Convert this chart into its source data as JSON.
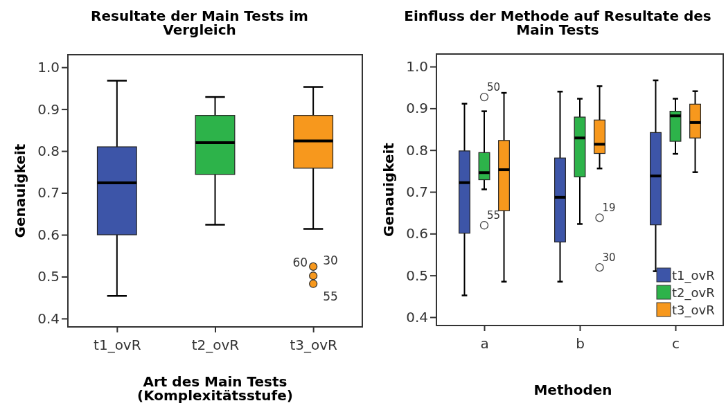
{
  "chart_data": [
    {
      "type": "box",
      "title": "Resultate der Main Tests im\nVergleich",
      "xlabel": "Art des Main Tests\n(Komplexitätsstufe)",
      "ylabel": "Genauigkeit",
      "categories": [
        "t1_ovR",
        "t2_ovR",
        "t3_ovR"
      ],
      "colors": [
        "#3d55a8",
        "#2db34a",
        "#f7981d"
      ],
      "boxes": [
        {
          "low": 0.454,
          "q1": 0.6,
          "median": 0.724,
          "q3": 0.81,
          "high": 0.968
        },
        {
          "low": 0.624,
          "q1": 0.744,
          "median": 0.82,
          "q3": 0.885,
          "high": 0.929
        },
        {
          "low": 0.614,
          "q1": 0.759,
          "median": 0.824,
          "q3": 0.885,
          "high": 0.953,
          "outliers": [
            0.524,
            0.502,
            0.483
          ]
        }
      ],
      "annotations": [
        "60",
        "30",
        "55"
      ],
      "ylim": [
        0.38,
        1.03
      ],
      "yticks": [
        {
          "value": 0.4,
          "label": "0.4"
        },
        {
          "value": 0.5,
          "label": "0.5"
        },
        {
          "value": 0.6,
          "label": "0.6"
        },
        {
          "value": 0.7,
          "label": "0.7"
        },
        {
          "value": 0.8,
          "label": "0.8"
        },
        {
          "value": 0.9,
          "label": "0.9"
        },
        {
          "value": 1.0,
          "label": "1.0"
        }
      ],
      "grid": false,
      "legend": false
    },
    {
      "type": "box",
      "title": "Einfluss der Methode auf Resultate des\nMain Tests",
      "xlabel": "Methoden",
      "ylabel": "Genauigkeit",
      "categories": [
        "a",
        "b",
        "c"
      ],
      "series": [
        {
          "name": "t1_ovR",
          "color": "#3d55a8",
          "boxes": [
            {
              "low": 0.452,
              "q1": 0.601,
              "median": 0.722,
              "q3": 0.798,
              "high": 0.911
            },
            {
              "low": 0.485,
              "q1": 0.58,
              "median": 0.687,
              "q3": 0.781,
              "high": 0.94
            },
            {
              "low": 0.51,
              "q1": 0.621,
              "median": 0.738,
              "q3": 0.842,
              "high": 0.967
            }
          ]
        },
        {
          "name": "t2_ovR",
          "color": "#2db34a",
          "boxes": [
            {
              "low": 0.706,
              "q1": 0.729,
              "median": 0.746,
              "q3": 0.794,
              "high": 0.893,
              "outliers": [
                0.927,
                0.62
              ]
            },
            {
              "low": 0.623,
              "q1": 0.736,
              "median": 0.829,
              "q3": 0.879,
              "high": 0.923
            },
            {
              "low": 0.791,
              "q1": 0.821,
              "median": 0.882,
              "q3": 0.893,
              "high": 0.923
            }
          ]
        },
        {
          "name": "t3_ovR",
          "color": "#f7981d",
          "boxes": [
            {
              "low": 0.485,
              "q1": 0.655,
              "median": 0.753,
              "q3": 0.823,
              "high": 0.937
            },
            {
              "low": 0.756,
              "q1": 0.792,
              "median": 0.814,
              "q3": 0.872,
              "high": 0.953,
              "outliers": [
                0.638,
                0.519
              ]
            },
            {
              "low": 0.747,
              "q1": 0.829,
              "median": 0.866,
              "q3": 0.91,
              "high": 0.941
            }
          ]
        }
      ],
      "annotations": [
        "50",
        "55",
        "19",
        "30"
      ],
      "ylim": [
        0.38,
        1.03
      ],
      "yticks": [
        {
          "value": 0.4,
          "label": "0.4"
        },
        {
          "value": 0.5,
          "label": "0.5"
        },
        {
          "value": 0.6,
          "label": "0.6"
        },
        {
          "value": 0.7,
          "label": "0.7"
        },
        {
          "value": 0.8,
          "label": "0.8"
        },
        {
          "value": 0.9,
          "label": "0.9"
        },
        {
          "value": 1.0,
          "label": "1.0"
        }
      ],
      "grid": false,
      "legend": "bottom right"
    }
  ]
}
